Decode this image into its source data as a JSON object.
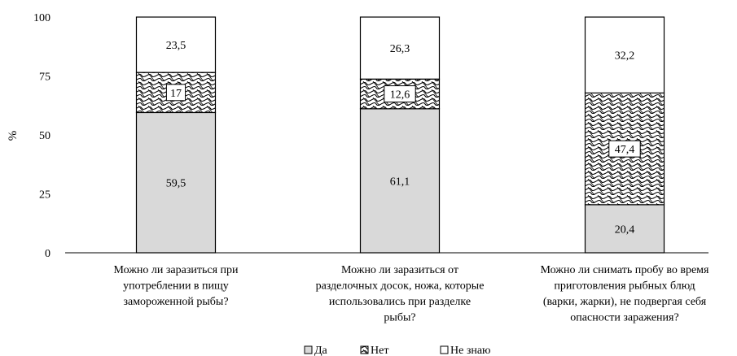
{
  "chart_data": {
    "type": "bar",
    "stacked": true,
    "title": "",
    "xlabel": "",
    "ylabel": "%",
    "ylim": [
      0,
      100
    ],
    "yticks": [
      0,
      25,
      50,
      75,
      100
    ],
    "grid": false,
    "legend_position": "bottom",
    "categories": [
      [
        "Можно ли заразиться при",
        "употреблении в пищу",
        "замороженной рыбы?"
      ],
      [
        "Можно ли заразиться от",
        "разделочных досок, ножа, которые",
        "использовались при разделке",
        "рыбы?"
      ],
      [
        "Можно ли снимать пробу во время",
        "приготовления рыбных блюд",
        "(варки, жарки), не подвергая себя",
        "опасности заражения?"
      ]
    ],
    "series": [
      {
        "name": "Да",
        "values": [
          59.5,
          61.1,
          20.4
        ],
        "labels": [
          "59,5",
          "61,1",
          "20,4"
        ],
        "pattern": "solid",
        "color": "#d9d9d9"
      },
      {
        "name": "Нет",
        "values": [
          17,
          12.6,
          47.4
        ],
        "labels": [
          "17",
          "12,6",
          "47,4"
        ],
        "pattern": "crosshatch",
        "color": "#ffffff"
      },
      {
        "name": "Не знаю",
        "values": [
          23.5,
          26.3,
          32.2
        ],
        "labels": [
          "23,5",
          "26,3",
          "32,2"
        ],
        "pattern": "none",
        "color": "#ffffff"
      }
    ]
  }
}
